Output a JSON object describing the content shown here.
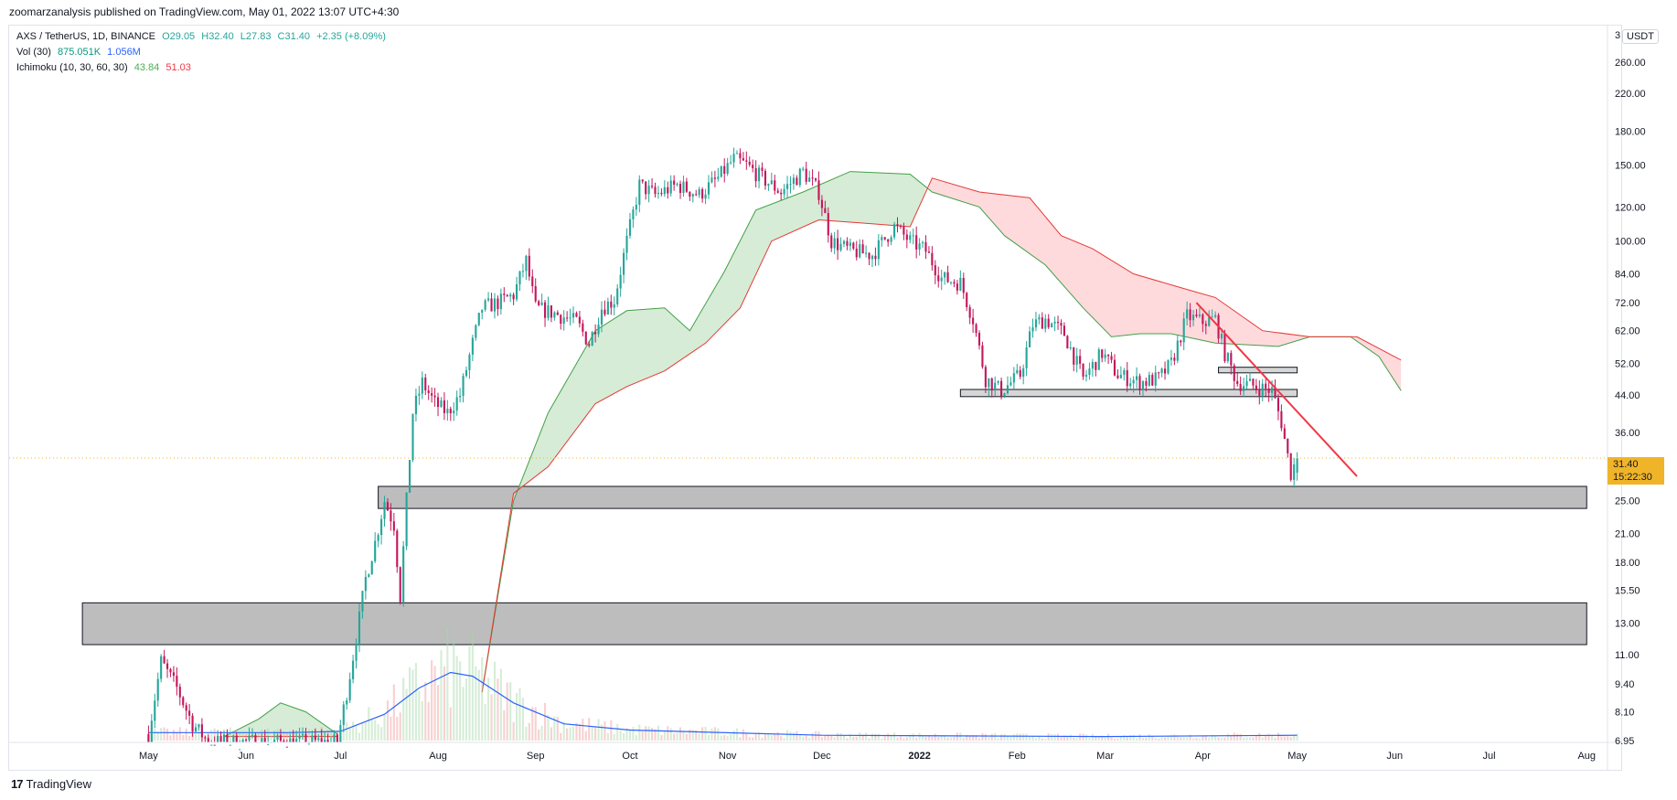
{
  "header": {
    "published": "zoomarzanalysis published on TradingView.com, May 01, 2022 13:07 UTC+4:30"
  },
  "legend": {
    "symbol": "AXS / TetherUS, 1D, BINANCE",
    "o": "O29.05",
    "h": "H32.40",
    "l": "L27.83",
    "c": "C31.40",
    "chg": "+2.35 (+8.09%)",
    "vol_label": "Vol (30)",
    "vol_value": "875.051K",
    "vol_ma": "1.056M",
    "ichi_label": "Ichimoku (10, 30, 60, 30)",
    "ichi_a": "43.84",
    "ichi_b": "51.03"
  },
  "price_axis": {
    "currency": "USDT",
    "top_tick": "3",
    "current_price": "31.40",
    "countdown": "15:22:30"
  },
  "footer": {
    "brand": "TradingView",
    "logo": "17"
  },
  "colors": {
    "up": "#26a69a",
    "down": "#c2185b",
    "cloud_bull": "#c8e6c9",
    "cloud_bear": "#ffcdd2",
    "kijun": "#e53935",
    "volume_ma": "#2962ff",
    "price_line": "#f0b429",
    "trendline": "#f23645"
  },
  "chart_data": {
    "type": "candlestick",
    "scale": "log",
    "ylim": [
      6.95,
      300
    ],
    "x_tick_labels": [
      "May",
      "Jun",
      "Jul",
      "Aug",
      "Sep",
      "Oct",
      "Nov",
      "Dec",
      "2022",
      "Feb",
      "Mar",
      "Apr",
      "May",
      "Jun",
      "Jul",
      "Aug"
    ],
    "y_tick_labels": [
      "260.00",
      "220.00",
      "180.00",
      "150.00",
      "120.00",
      "100.00",
      "84.00",
      "72.00",
      "62.00",
      "52.00",
      "44.00",
      "36.00",
      "25.00",
      "21.00",
      "18.00",
      "15.50",
      "13.00",
      "11.00",
      "9.40",
      "8.10",
      "6.95"
    ],
    "y_ticks": [
      260,
      220,
      180,
      150,
      120,
      100,
      84,
      72,
      62,
      52,
      44,
      36,
      25,
      21,
      18,
      15.5,
      13,
      11,
      9.4,
      8.1,
      6.95
    ],
    "price_path_close": [
      [
        "2021-05-01",
        7.2
      ],
      [
        "2021-05-05",
        10.6
      ],
      [
        "2021-05-10",
        9.2
      ],
      [
        "2021-05-15",
        7.6
      ],
      [
        "2021-05-20",
        6.9
      ],
      [
        "2021-06-30",
        6.9
      ],
      [
        "2021-07-03",
        9.0
      ],
      [
        "2021-07-06",
        12.0
      ],
      [
        "2021-07-09",
        16.5
      ],
      [
        "2021-07-12",
        20.0
      ],
      [
        "2021-07-15",
        25.0
      ],
      [
        "2021-07-18",
        22.0
      ],
      [
        "2021-07-20",
        15.0
      ],
      [
        "2021-07-22",
        25.0
      ],
      [
        "2021-07-24",
        40.0
      ],
      [
        "2021-07-27",
        47.0
      ],
      [
        "2021-07-31",
        42.0
      ],
      [
        "2021-08-04",
        40.0
      ],
      [
        "2021-08-08",
        44.0
      ],
      [
        "2021-08-12",
        58.0
      ],
      [
        "2021-08-15",
        70.0
      ],
      [
        "2021-08-20",
        72.0
      ],
      [
        "2021-08-25",
        75.0
      ],
      [
        "2021-08-29",
        90.0
      ],
      [
        "2021-09-01",
        70.0
      ],
      [
        "2021-09-07",
        68.0
      ],
      [
        "2021-09-14",
        65.0
      ],
      [
        "2021-09-18",
        58.0
      ],
      [
        "2021-09-22",
        70.0
      ],
      [
        "2021-09-26",
        73.0
      ],
      [
        "2021-09-30",
        100.0
      ],
      [
        "2021-10-04",
        135.0
      ],
      [
        "2021-10-09",
        128.0
      ],
      [
        "2021-10-16",
        135.0
      ],
      [
        "2021-10-23",
        128.0
      ],
      [
        "2021-10-29",
        140.0
      ],
      [
        "2021-11-03",
        155.0
      ],
      [
        "2021-11-07",
        150.0
      ],
      [
        "2021-11-12",
        140.0
      ],
      [
        "2021-11-18",
        130.0
      ],
      [
        "2021-11-25",
        145.0
      ],
      [
        "2021-11-30",
        130.0
      ],
      [
        "2021-12-04",
        100.0
      ],
      [
        "2021-12-10",
        95.0
      ],
      [
        "2021-12-17",
        93.0
      ],
      [
        "2021-12-24",
        108.0
      ],
      [
        "2021-12-29",
        100.0
      ],
      [
        "2022-01-03",
        95.0
      ],
      [
        "2022-01-08",
        82.0
      ],
      [
        "2022-01-14",
        80.0
      ],
      [
        "2022-01-18",
        66.0
      ],
      [
        "2022-01-22",
        48.0
      ],
      [
        "2022-01-27",
        45.0
      ],
      [
        "2022-02-02",
        49.0
      ],
      [
        "2022-02-06",
        64.0
      ],
      [
        "2022-02-10",
        66.0
      ],
      [
        "2022-02-16",
        61.0
      ],
      [
        "2022-02-22",
        48.0
      ],
      [
        "2022-02-28",
        55.0
      ],
      [
        "2022-03-05",
        49.0
      ],
      [
        "2022-03-12",
        47.0
      ],
      [
        "2022-03-18",
        48.0
      ],
      [
        "2022-03-22",
        52.0
      ],
      [
        "2022-03-27",
        67.0
      ],
      [
        "2022-04-01",
        65.0
      ],
      [
        "2022-04-05",
        66.0
      ],
      [
        "2022-04-08",
        55.0
      ],
      [
        "2022-04-12",
        47.0
      ],
      [
        "2022-04-18",
        46.0
      ],
      [
        "2022-04-23",
        45.0
      ],
      [
        "2022-04-26",
        38.0
      ],
      [
        "2022-04-29",
        29.0
      ],
      [
        "2022-05-01",
        31.4
      ]
    ],
    "ichimoku_span_a": [
      [
        "2021-08-15",
        9.0
      ],
      [
        "2021-08-25",
        25.0
      ],
      [
        "2021-09-05",
        40.0
      ],
      [
        "2021-09-20",
        62.0
      ],
      [
        "2021-09-30",
        69.0
      ],
      [
        "2021-10-12",
        70.0
      ],
      [
        "2021-10-20",
        62.0
      ],
      [
        "2021-10-31",
        85.0
      ],
      [
        "2021-11-10",
        118.0
      ],
      [
        "2021-11-25",
        130.0
      ],
      [
        "2021-12-10",
        145.0
      ],
      [
        "2021-12-29",
        143.0
      ],
      [
        "2022-01-05",
        130.0
      ],
      [
        "2022-01-20",
        120.0
      ],
      [
        "2022-01-28",
        103.0
      ],
      [
        "2022-02-10",
        88.0
      ],
      [
        "2022-02-22",
        70.0
      ],
      [
        "2022-03-03",
        60.0
      ],
      [
        "2022-03-12",
        61.0
      ],
      [
        "2022-03-22",
        61.0
      ],
      [
        "2022-04-05",
        58.0
      ],
      [
        "2022-04-25",
        57.0
      ],
      [
        "2022-05-05",
        60.0
      ],
      [
        "2022-05-18",
        60.0
      ],
      [
        "2022-05-27",
        54.0
      ],
      [
        "2022-06-03",
        45.0
      ]
    ],
    "ichimoku_span_b": [
      [
        "2021-08-15",
        9.0
      ],
      [
        "2021-08-25",
        26.0
      ],
      [
        "2021-09-05",
        30.0
      ],
      [
        "2021-09-20",
        42.0
      ],
      [
        "2021-09-30",
        46.0
      ],
      [
        "2021-10-12",
        50.0
      ],
      [
        "2021-10-25",
        58.0
      ],
      [
        "2021-11-05",
        70.0
      ],
      [
        "2021-11-15",
        100.0
      ],
      [
        "2021-11-30",
        112.0
      ],
      [
        "2021-12-15",
        110.0
      ],
      [
        "2021-12-29",
        108.0
      ],
      [
        "2022-01-05",
        140.0
      ],
      [
        "2022-01-20",
        130.0
      ],
      [
        "2022-02-05",
        126.0
      ],
      [
        "2022-02-15",
        103.0
      ],
      [
        "2022-02-25",
        96.0
      ],
      [
        "2022-03-10",
        84.0
      ],
      [
        "2022-03-25",
        78.0
      ],
      [
        "2022-04-05",
        74.0
      ],
      [
        "2022-04-20",
        62.0
      ],
      [
        "2022-05-05",
        60.0
      ],
      [
        "2022-05-20",
        60.0
      ],
      [
        "2022-06-03",
        53.0
      ]
    ],
    "early_cloud_a": [
      [
        "2021-05-25",
        7.1
      ],
      [
        "2021-06-05",
        7.8
      ],
      [
        "2021-06-12",
        8.5
      ],
      [
        "2021-06-20",
        8.1
      ],
      [
        "2021-06-30",
        7.2
      ]
    ],
    "early_cloud_b": [
      [
        "2021-05-25",
        7.1
      ],
      [
        "2021-06-05",
        7.1
      ],
      [
        "2021-06-12",
        7.1
      ],
      [
        "2021-06-20",
        7.1
      ],
      [
        "2021-06-30",
        7.1
      ]
    ],
    "zones": [
      {
        "from": "2021-07-13",
        "to": "2022-08-01",
        "low": 24.0,
        "high": 27.0
      },
      {
        "from": "2021-04-10",
        "to": "2022-08-01",
        "low": 11.6,
        "high": 14.5
      },
      {
        "from": "2022-01-14",
        "to": "2022-05-01",
        "low": 43.6,
        "high": 45.3
      },
      {
        "from": "2022-04-06",
        "to": "2022-05-01",
        "low": 49.5,
        "high": 51.0
      }
    ],
    "trendline": [
      [
        "2022-03-30",
        72.0
      ],
      [
        "2022-05-20",
        28.5
      ]
    ],
    "current_price": 31.4,
    "volume_ma": [
      [
        "2021-05-01",
        7.25
      ],
      [
        "2021-06-15",
        7.25
      ],
      [
        "2021-07-01",
        7.3
      ],
      [
        "2021-07-15",
        8.0
      ],
      [
        "2021-07-26",
        9.2
      ],
      [
        "2021-08-05",
        10.0
      ],
      [
        "2021-08-12",
        9.8
      ],
      [
        "2021-08-25",
        8.5
      ],
      [
        "2021-09-10",
        7.6
      ],
      [
        "2021-10-01",
        7.35
      ],
      [
        "2021-12-01",
        7.15
      ],
      [
        "2022-03-01",
        7.1
      ],
      [
        "2022-05-01",
        7.15
      ]
    ]
  }
}
